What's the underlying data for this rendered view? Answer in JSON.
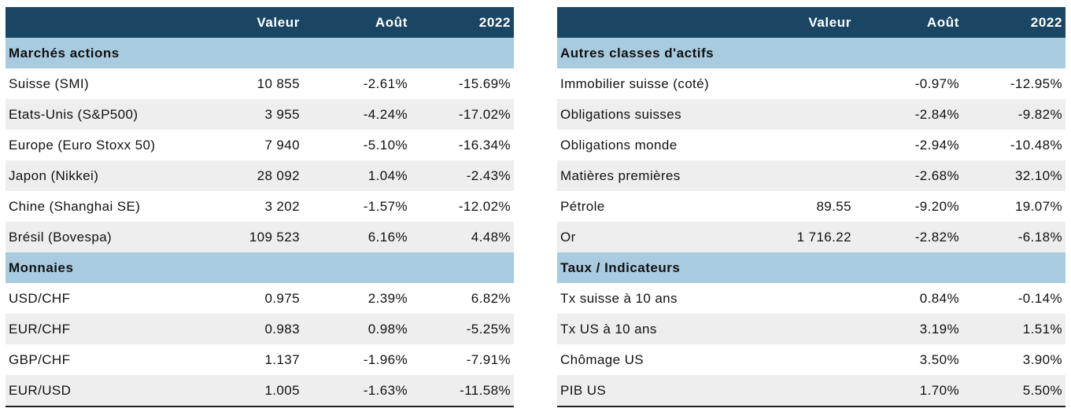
{
  "left_table": {
    "headers": [
      "",
      "Valeur",
      "Août",
      "2022"
    ],
    "sections": [
      {
        "title": "Marchés actions",
        "rows": [
          [
            "Suisse (SMI)",
            "10 855",
            "-2.61%",
            "-15.69%"
          ],
          [
            "Etats-Unis (S&P500)",
            "3 955",
            "-4.24%",
            "-17.02%"
          ],
          [
            "Europe (Euro Stoxx 50)",
            "7 940",
            "-5.10%",
            "-16.34%"
          ],
          [
            "Japon (Nikkei)",
            "28 092",
            "1.04%",
            "-2.43%"
          ],
          [
            "Chine (Shanghai SE)",
            "3 202",
            "-1.57%",
            "-12.02%"
          ],
          [
            "Brésil (Bovespa)",
            "109 523",
            "6.16%",
            "4.48%"
          ]
        ]
      },
      {
        "title": "Monnaies",
        "rows": [
          [
            "USD/CHF",
            "0.975",
            "2.39%",
            "6.82%"
          ],
          [
            "EUR/CHF",
            "0.983",
            "0.98%",
            "-5.25%"
          ],
          [
            "GBP/CHF",
            "1.137",
            "-1.96%",
            "-7.91%"
          ],
          [
            "EUR/USD",
            "1.005",
            "-1.63%",
            "-11.58%"
          ]
        ]
      }
    ]
  },
  "right_table": {
    "headers": [
      "",
      "Valeur",
      "Août",
      "2022"
    ],
    "sections": [
      {
        "title": "Autres classes d'actifs",
        "rows": [
          [
            "Immobilier suisse (coté)",
            "",
            "-0.97%",
            "-12.95%"
          ],
          [
            "Obligations suisses",
            "",
            "-2.84%",
            "-9.82%"
          ],
          [
            "Obligations monde",
            "",
            "-2.94%",
            "-10.48%"
          ],
          [
            "Matières premières",
            "",
            "-2.68%",
            "32.10%"
          ],
          [
            "Pétrole",
            "89.55",
            "-9.20%",
            "19.07%"
          ],
          [
            "Or",
            "1 716.22",
            "-2.82%",
            "-6.18%"
          ]
        ]
      },
      {
        "title": "Taux / Indicateurs",
        "rows": [
          [
            "Tx suisse à 10 ans",
            "",
            "0.84%",
            "-0.14%"
          ],
          [
            "Tx US à 10 ans",
            "",
            "3.19%",
            "1.51%"
          ],
          [
            "Chômage US",
            "",
            "3.50%",
            "3.90%"
          ],
          [
            "PIB US",
            "",
            "1.70%",
            "5.50%"
          ]
        ]
      }
    ],
    "colors": {
      "header_bg": "#1b4663",
      "section_bg": "#a9cbdf",
      "alt_row_bg": "#eeeeee"
    }
  }
}
